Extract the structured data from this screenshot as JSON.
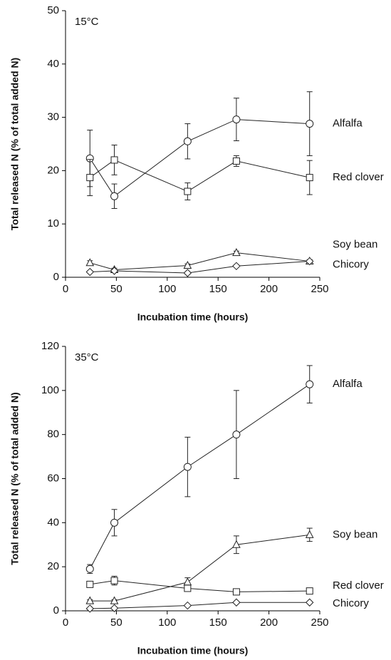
{
  "chart_data": [
    {
      "type": "line",
      "annotation": "15°C",
      "x_label": "Incubation time (hours)",
      "y_label": "Total released N (% of total added N)",
      "x": [
        24,
        48,
        120,
        168,
        240
      ],
      "xlim": [
        0,
        250
      ],
      "xticks": [
        0,
        50,
        100,
        150,
        200,
        250
      ],
      "ylim": [
        0,
        50
      ],
      "yticks": [
        0,
        10,
        20,
        30,
        40,
        50
      ],
      "series": [
        {
          "name": "Alfalfa",
          "color": "#222222",
          "marker": "circle",
          "values": [
            22.3,
            15.2,
            25.5,
            29.6,
            28.8
          ],
          "errors": [
            5.3,
            2.3,
            3.3,
            4,
            6
          ]
        },
        {
          "name": "Red clover",
          "color": "#222222",
          "marker": "square",
          "values": [
            18.7,
            22.0,
            16.1,
            21.8,
            18.7
          ],
          "errors": [
            3.4,
            2.8,
            1.6,
            1.0,
            3.2
          ]
        },
        {
          "name": "Soy bean",
          "color": "#222222",
          "marker": "triangle",
          "values": [
            2.7,
            1.4,
            2.2,
            4.6,
            3.0
          ],
          "errors": [
            0.4,
            0.3,
            0.3,
            0.3,
            0.3
          ]
        },
        {
          "name": "Chicory",
          "color": "#222222",
          "marker": "diamond",
          "values": [
            1.0,
            1.2,
            0.8,
            2.1,
            3.0
          ],
          "errors": [
            0.2,
            0.2,
            0.2,
            0.2,
            0.2
          ]
        }
      ]
    },
    {
      "type": "line",
      "annotation": "35°C",
      "x_label": "Incubation time (hours)",
      "y_label": "Total released N (% of total added N)",
      "x": [
        24,
        48,
        120,
        168,
        240
      ],
      "xlim": [
        0,
        250
      ],
      "xticks": [
        0,
        50,
        100,
        150,
        200,
        250
      ],
      "ylim": [
        0,
        120
      ],
      "yticks": [
        0,
        20,
        40,
        60,
        80,
        100,
        120
      ],
      "series": [
        {
          "name": "Alfalfa",
          "color": "#222222",
          "marker": "circle",
          "values": [
            19,
            40,
            65.3,
            80,
            102.8
          ],
          "errors": [
            2,
            6,
            13.5,
            20,
            8.5
          ]
        },
        {
          "name": "Soy bean",
          "color": "#222222",
          "marker": "triangle",
          "values": [
            4.5,
            4.5,
            13,
            30,
            34.5
          ],
          "errors": [
            0.5,
            0.5,
            2,
            4,
            3
          ]
        },
        {
          "name": "Red clover",
          "color": "#222222",
          "marker": "square",
          "values": [
            12,
            13.7,
            10.2,
            8.6,
            9
          ],
          "errors": [
            0.5,
            2,
            1,
            0.5,
            0.5
          ]
        },
        {
          "name": "Chicory",
          "color": "#222222",
          "marker": "diamond",
          "values": [
            1,
            1.2,
            2.4,
            3.8,
            3.8
          ],
          "errors": [
            0.3,
            0.3,
            0.3,
            0.3,
            0.3
          ]
        }
      ]
    }
  ]
}
